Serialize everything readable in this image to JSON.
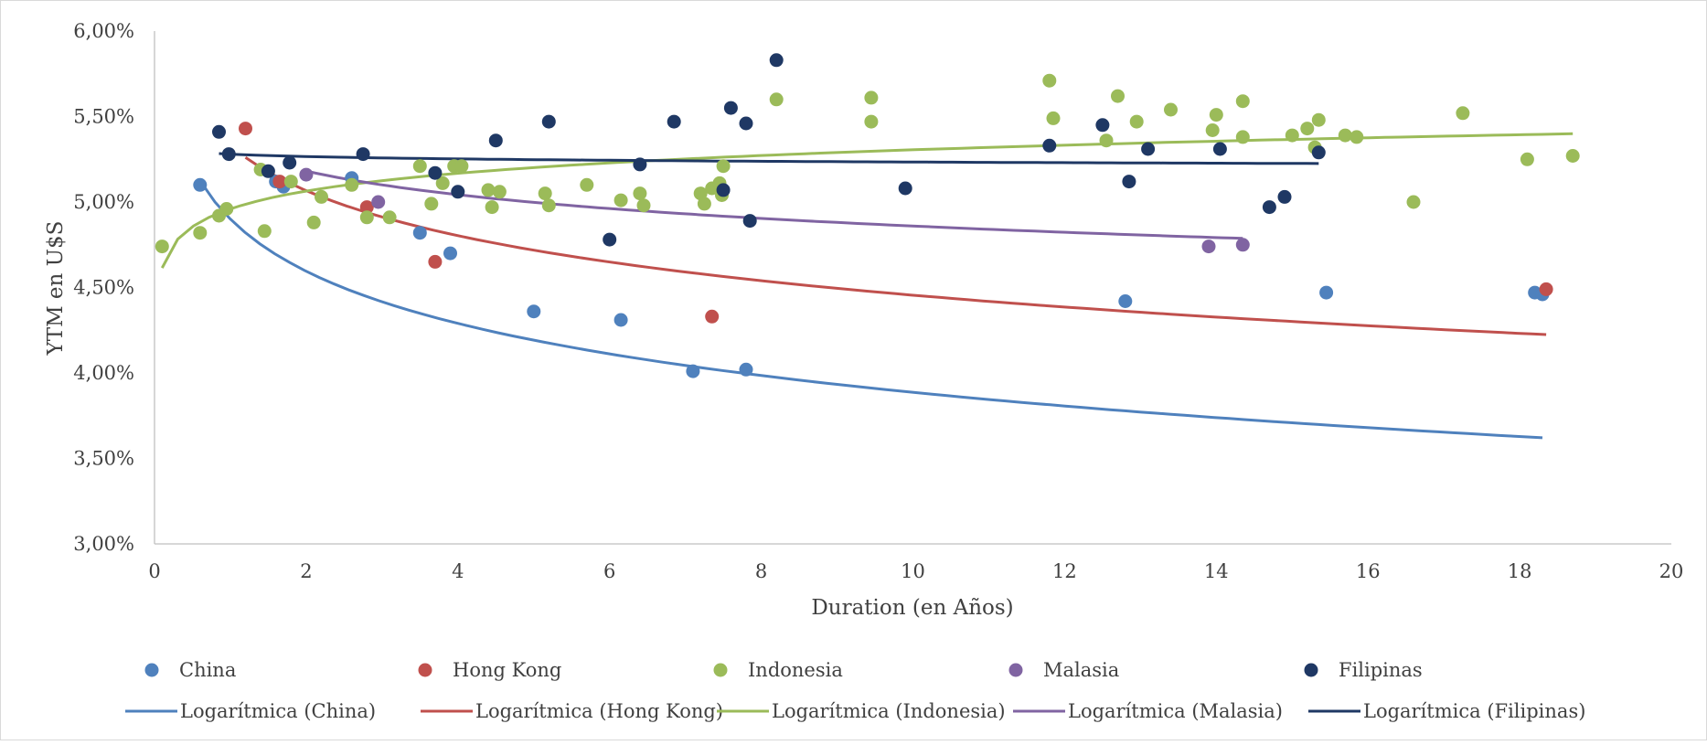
{
  "chart_data": {
    "type": "scatter",
    "title": "",
    "xlabel": "Duration (en Años)",
    "ylabel": "YTM en U$S",
    "xlim": [
      0,
      20
    ],
    "ylim": [
      0.03,
      0.06
    ],
    "x_ticks": [
      0,
      2,
      4,
      6,
      8,
      10,
      12,
      14,
      16,
      18,
      20
    ],
    "x_tick_labels": [
      "0",
      "2",
      "4",
      "6",
      "8",
      "10",
      "12",
      "14",
      "16",
      "18",
      "20"
    ],
    "y_ticks": [
      0.03,
      0.035,
      0.04,
      0.045,
      0.05,
      0.055,
      0.06
    ],
    "y_tick_labels": [
      "3,00%",
      "3,50%",
      "4,00%",
      "4,50%",
      "5,00%",
      "5,50%",
      "6,00%"
    ],
    "grid": false,
    "legend_position": "bottom",
    "series": [
      {
        "name": "China",
        "color": "#4F81BD",
        "points": [
          [
            0.6,
            0.051
          ],
          [
            1.6,
            0.0512
          ],
          [
            1.7,
            0.0509
          ],
          [
            2.6,
            0.0514
          ],
          [
            3.5,
            0.0482
          ],
          [
            3.9,
            0.047
          ],
          [
            5.0,
            0.0436
          ],
          [
            6.15,
            0.0431
          ],
          [
            7.1,
            0.0401
          ],
          [
            7.8,
            0.0402
          ],
          [
            12.8,
            0.0442
          ],
          [
            15.45,
            0.0447
          ],
          [
            18.2,
            0.0447
          ],
          [
            18.3,
            0.0446
          ]
        ]
      },
      {
        "name": "Hong Kong",
        "color": "#C0504D",
        "points": [
          [
            1.2,
            0.0543
          ],
          [
            1.65,
            0.0512
          ],
          [
            2.8,
            0.0497
          ],
          [
            3.7,
            0.0465
          ],
          [
            7.35,
            0.0433
          ],
          [
            18.35,
            0.0449
          ]
        ]
      },
      {
        "name": "Indonesia",
        "color": "#9BBB59",
        "points": [
          [
            0.1,
            0.0474
          ],
          [
            0.6,
            0.0482
          ],
          [
            0.85,
            0.0492
          ],
          [
            0.95,
            0.0496
          ],
          [
            1.4,
            0.0519
          ],
          [
            1.45,
            0.0483
          ],
          [
            1.8,
            0.0512
          ],
          [
            2.1,
            0.0488
          ],
          [
            2.2,
            0.0503
          ],
          [
            2.6,
            0.051
          ],
          [
            2.8,
            0.0491
          ],
          [
            3.1,
            0.0491
          ],
          [
            3.5,
            0.0521
          ],
          [
            3.65,
            0.0499
          ],
          [
            3.8,
            0.0511
          ],
          [
            3.95,
            0.0521
          ],
          [
            4.05,
            0.0521
          ],
          [
            4.4,
            0.0507
          ],
          [
            4.45,
            0.0497
          ],
          [
            4.55,
            0.0506
          ],
          [
            5.15,
            0.0505
          ],
          [
            5.2,
            0.0498
          ],
          [
            5.7,
            0.051
          ],
          [
            6.15,
            0.0501
          ],
          [
            6.4,
            0.0505
          ],
          [
            6.45,
            0.0498
          ],
          [
            7.2,
            0.0505
          ],
          [
            7.25,
            0.0499
          ],
          [
            7.35,
            0.0508
          ],
          [
            7.45,
            0.0511
          ],
          [
            7.48,
            0.0504
          ],
          [
            7.5,
            0.0521
          ],
          [
            8.2,
            0.056
          ],
          [
            9.45,
            0.0547
          ],
          [
            9.45,
            0.0561
          ],
          [
            11.8,
            0.0571
          ],
          [
            11.85,
            0.0549
          ],
          [
            12.55,
            0.0536
          ],
          [
            12.7,
            0.0562
          ],
          [
            12.95,
            0.0547
          ],
          [
            13.4,
            0.0554
          ],
          [
            13.95,
            0.0542
          ],
          [
            14.0,
            0.0551
          ],
          [
            14.35,
            0.0559
          ],
          [
            14.35,
            0.0538
          ],
          [
            15.0,
            0.0539
          ],
          [
            15.2,
            0.0543
          ],
          [
            15.3,
            0.0532
          ],
          [
            15.35,
            0.0548
          ],
          [
            15.7,
            0.0539
          ],
          [
            15.85,
            0.0538
          ],
          [
            16.6,
            0.05
          ],
          [
            17.25,
            0.0552
          ],
          [
            18.1,
            0.0525
          ],
          [
            18.7,
            0.0527
          ]
        ]
      },
      {
        "name": "Malasia",
        "color": "#8064A2",
        "points": [
          [
            2.0,
            0.0516
          ],
          [
            2.95,
            0.05
          ],
          [
            13.9,
            0.0474
          ],
          [
            14.35,
            0.0475
          ]
        ]
      },
      {
        "name": "Filipinas",
        "color": "#1F3864",
        "points": [
          [
            0.85,
            0.0541
          ],
          [
            0.98,
            0.0528
          ],
          [
            1.5,
            0.0518
          ],
          [
            1.78,
            0.0523
          ],
          [
            2.75,
            0.0528
          ],
          [
            3.7,
            0.0517
          ],
          [
            4.0,
            0.0506
          ],
          [
            4.5,
            0.0536
          ],
          [
            5.2,
            0.0547
          ],
          [
            6.0,
            0.0478
          ],
          [
            6.4,
            0.0522
          ],
          [
            6.85,
            0.0547
          ],
          [
            7.5,
            0.0507
          ],
          [
            7.6,
            0.0555
          ],
          [
            7.8,
            0.0546
          ],
          [
            7.85,
            0.0489
          ],
          [
            8.2,
            0.0583
          ],
          [
            9.9,
            0.0508
          ],
          [
            11.8,
            0.0533
          ],
          [
            12.5,
            0.0545
          ],
          [
            12.85,
            0.0512
          ],
          [
            13.1,
            0.0531
          ],
          [
            14.05,
            0.0531
          ],
          [
            14.7,
            0.0497
          ],
          [
            14.9,
            0.0503
          ],
          [
            15.35,
            0.0529
          ]
        ]
      }
    ],
    "trendlines": [
      {
        "name": "Logarítmica (China)",
        "type": "logarithmic",
        "color": "#4F81BD",
        "x_range": [
          0.6,
          18.3
        ],
        "a": 0.049,
        "b": -0.0044
      },
      {
        "name": "Logarítmica (Hong Kong)",
        "type": "logarithmic",
        "color": "#C0504D",
        "x_range": [
          1.2,
          18.35
        ],
        "a": 0.0533,
        "b": -0.0038
      },
      {
        "name": "Logarítmica (Indonesia)",
        "type": "logarithmic",
        "color": "#9BBB59",
        "x_range": [
          0.1,
          18.7
        ],
        "a": 0.0496,
        "b": 0.0015
      },
      {
        "name": "Logarítmica (Malasia)",
        "type": "logarithmic",
        "color": "#8064A2",
        "x_range": [
          2.0,
          14.35
        ],
        "a": 0.0532,
        "b": -0.002
      },
      {
        "name": "Logarítmica (Filipinas)",
        "type": "logarithmic",
        "color": "#1F3864",
        "x_range": [
          0.85,
          15.35
        ],
        "a": 0.0528,
        "b": -0.0002
      }
    ]
  }
}
